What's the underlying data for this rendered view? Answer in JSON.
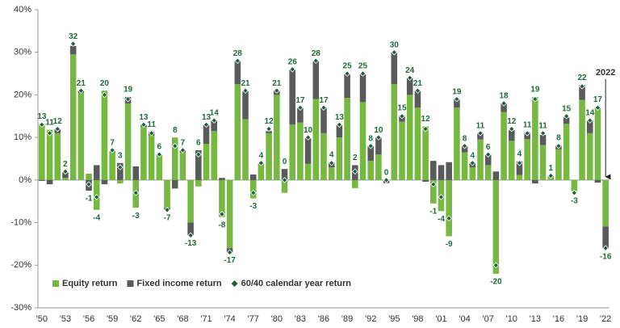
{
  "chart_data": {
    "type": "bar",
    "categories": [
      "'50",
      null,
      null,
      "'53",
      null,
      null,
      "'56",
      null,
      null,
      "'59",
      null,
      null,
      "'62",
      null,
      null,
      "'65",
      null,
      null,
      "'68",
      null,
      null,
      "'71",
      null,
      null,
      "'74",
      null,
      null,
      "'77",
      null,
      null,
      "'80",
      null,
      null,
      "'83",
      null,
      null,
      "'86",
      null,
      null,
      "'89",
      null,
      null,
      "'92",
      null,
      null,
      "'95",
      null,
      null,
      "'98",
      null,
      null,
      "'01",
      null,
      null,
      "'04",
      null,
      null,
      "'07",
      null,
      null,
      "'10",
      null,
      null,
      "'13",
      null,
      null,
      "'16",
      null,
      null,
      "'19",
      null,
      null,
      "'22"
    ],
    "series": [
      {
        "name": "Equity return",
        "color": "#77b843",
        "values": [
          13.2,
          11.8,
          11.0,
          0.5,
          29.5,
          20.5,
          1.5,
          -7.0,
          21.0,
          6.5,
          -0.8,
          18.0,
          -6.5,
          12.5,
          10.5,
          6.0,
          -6.5,
          10.0,
          6.5,
          -10.0,
          -1.5,
          8.5,
          11.5,
          -8.7,
          -16.0,
          22.5,
          14.3,
          -4.3,
          4.0,
          11.0,
          20.0,
          -3.0,
          13.0,
          13.5,
          3.8,
          19.0,
          11.0,
          3.0,
          10.0,
          19.3,
          -1.9,
          18.3,
          4.5,
          6.0,
          -0.2,
          22.5,
          13.7,
          20.0,
          17.0,
          12.6,
          -5.5,
          -7.3,
          -13.2,
          17.0,
          6.5,
          3.0,
          9.5,
          3.5,
          -22.0,
          16.0,
          9.2,
          1.2,
          9.6,
          19.5,
          8.2,
          0.8,
          7.2,
          13.2,
          -2.6,
          18.8,
          11.0,
          17.2,
          -10.9
        ]
      },
      {
        "name": "Fixed income return",
        "color": "#595a5c",
        "values": [
          -0.2,
          -1.0,
          1.0,
          1.3,
          2.0,
          0.5,
          -2.5,
          3.5,
          -1.0,
          0.2,
          4.0,
          1.5,
          3.2,
          0.5,
          0.8,
          0.1,
          -0.5,
          -2.0,
          0.5,
          -3.0,
          7.0,
          4.5,
          2.5,
          0.5,
          -1.0,
          5.5,
          6.5,
          1.3,
          0.0,
          0.5,
          1.0,
          2.6,
          13.0,
          3.5,
          6.0,
          9.0,
          6.0,
          1.2,
          3.0,
          5.5,
          3.5,
          6.5,
          3.5,
          4.0,
          -0.5,
          7.5,
          1.5,
          4.0,
          4.0,
          -0.4,
          4.5,
          3.5,
          4.2,
          2.0,
          1.5,
          1.0,
          1.5,
          2.5,
          2.0,
          2.0,
          2.5,
          3.2,
          1.6,
          -0.8,
          2.4,
          0.2,
          1.0,
          1.5,
          0.0,
          3.5,
          3.0,
          -0.6,
          -5.2
        ]
      },
      {
        "name": "60/40 calendar year return",
        "color": "#1d5e3b",
        "values": [
          13,
          11,
          12,
          2,
          32,
          21,
          -1,
          -4,
          20,
          7,
          3,
          19,
          -3,
          13,
          11,
          6,
          -7,
          8,
          7,
          -13,
          6,
          13,
          14,
          -8,
          -17,
          28,
          21,
          -3,
          4,
          12,
          21,
          0,
          26,
          17,
          10,
          28,
          17,
          4,
          13,
          25,
          2,
          25,
          8,
          10,
          0,
          30,
          15,
          24,
          21,
          12,
          -1,
          -4,
          -9,
          19,
          8,
          4,
          11,
          6,
          -20,
          18,
          12,
          4,
          11,
          19,
          11,
          1,
          8,
          15,
          -3,
          22,
          14,
          17,
          -16
        ]
      }
    ],
    "annotation": "2022",
    "ylim": [
      -30,
      40
    ],
    "yticks": [
      {
        "value": -30,
        "label": "-30%"
      },
      {
        "value": -20,
        "label": "-20%"
      },
      {
        "value": -10,
        "label": "-10%"
      },
      {
        "value": 0,
        "label": "0%"
      },
      {
        "value": 10,
        "label": "10%"
      },
      {
        "value": 20,
        "label": "20%"
      },
      {
        "value": 30,
        "label": "30%"
      },
      {
        "value": 40,
        "label": "40%"
      }
    ],
    "legend": "lower left"
  }
}
